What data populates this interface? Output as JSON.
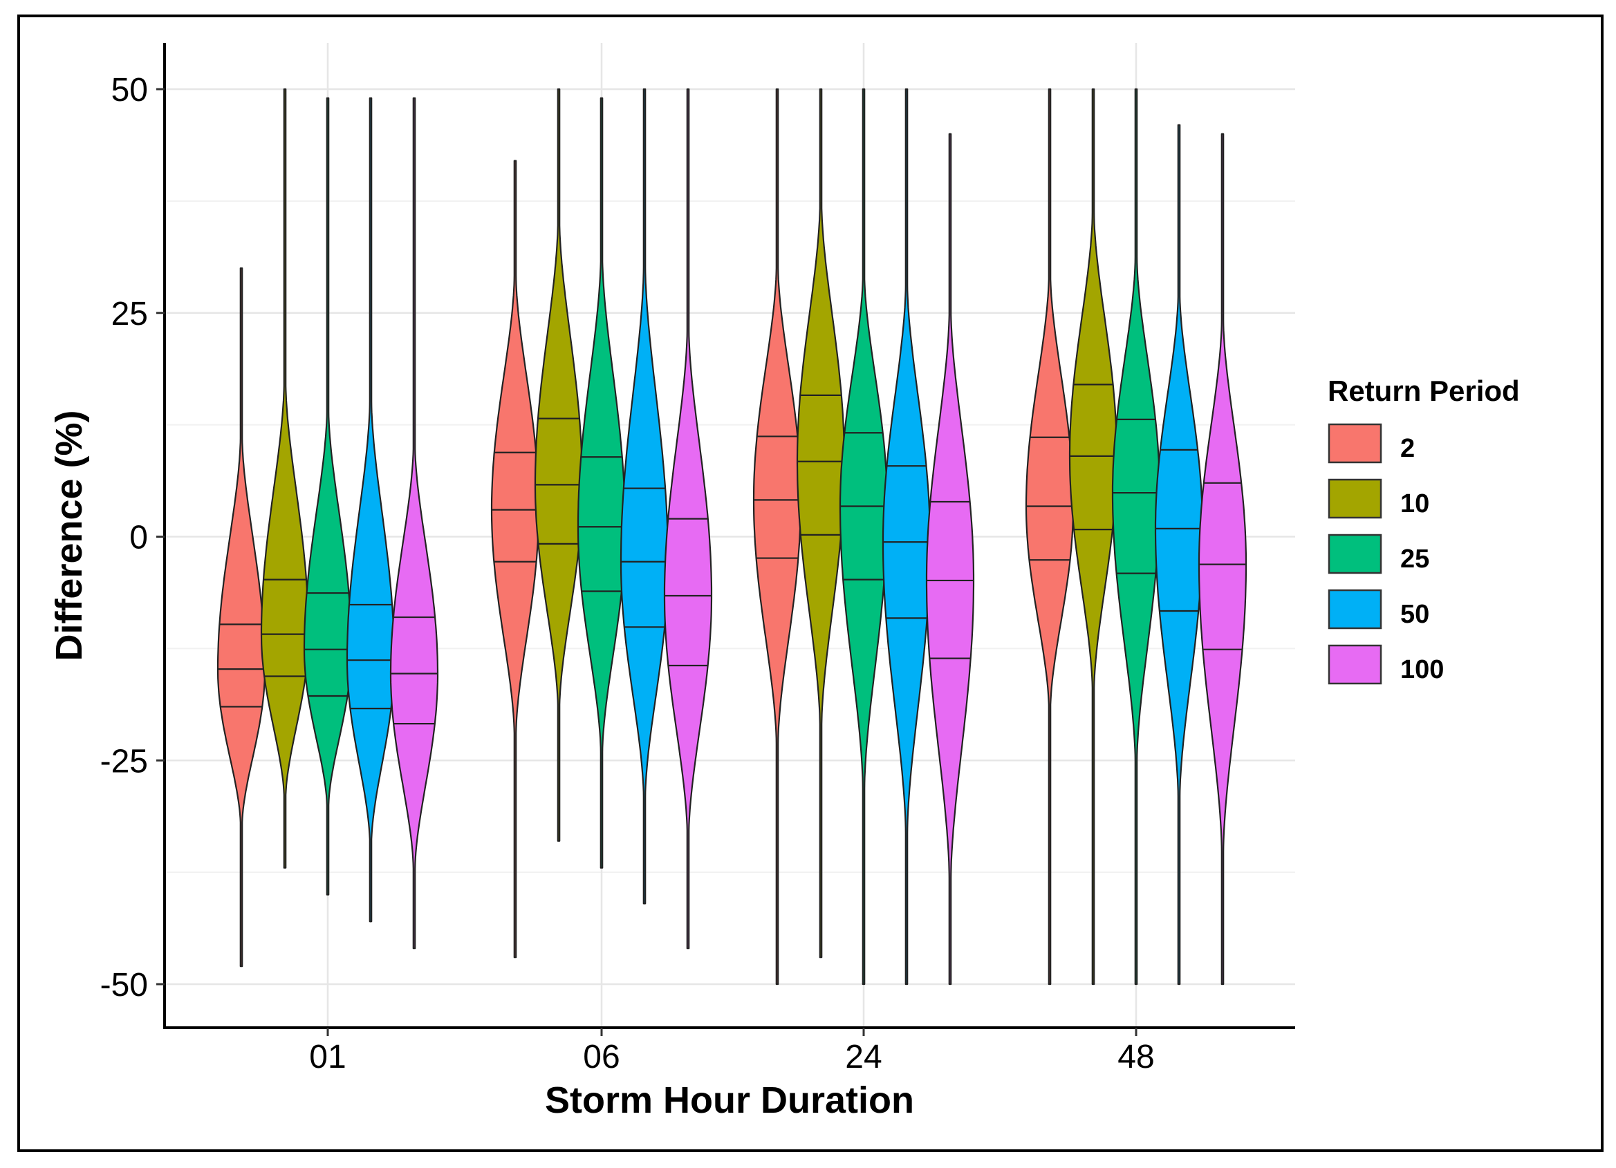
{
  "chart_data": {
    "type": "violin",
    "xlabel": "Storm Hour Duration",
    "ylabel": "Difference (%)",
    "categories": [
      "01",
      "06",
      "24",
      "48"
    ],
    "ylim": [
      -55,
      55
    ],
    "y_ticks": [
      -50,
      -25,
      0,
      25,
      50
    ],
    "y_tick_labels": [
      "-50",
      "-25",
      "0",
      "25",
      "50"
    ],
    "grid": true,
    "legend": {
      "title": "Return Period",
      "position": "right",
      "entries": [
        {
          "label": "2",
          "color": "#F8766D"
        },
        {
          "label": "10",
          "color": "#A3A500"
        },
        {
          "label": "25",
          "color": "#00BF7D"
        },
        {
          "label": "50",
          "color": "#00B0F6"
        },
        {
          "label": "100",
          "color": "#E76BF3"
        }
      ]
    },
    "series": [
      {
        "name": "2",
        "color": "#F8766D",
        "violins": [
          {
            "category": "01",
            "min": -48,
            "max": 30,
            "q1": -19,
            "median": -14.8,
            "q3": -9.8,
            "body_low": -32,
            "body_high": 11
          },
          {
            "category": "06",
            "min": -47,
            "max": 42,
            "q1": -2.8,
            "median": 3,
            "q3": 9.4,
            "body_low": -22,
            "body_high": 29
          },
          {
            "category": "24",
            "min": -50,
            "max": 50,
            "q1": -2.4,
            "median": 4.1,
            "q3": 11.2,
            "body_low": -23,
            "body_high": 30
          },
          {
            "category": "48",
            "min": -50,
            "max": 50,
            "q1": -2.6,
            "median": 3.4,
            "q3": 11.1,
            "body_low": -19,
            "body_high": 29
          }
        ]
      },
      {
        "name": "10",
        "color": "#A3A500",
        "violins": [
          {
            "category": "01",
            "min": -37,
            "max": 50,
            "q1": -15.6,
            "median": -10.9,
            "q3": -4.8,
            "body_low": -29,
            "body_high": 17
          },
          {
            "category": "06",
            "min": -34,
            "max": 50,
            "q1": -0.8,
            "median": 5.8,
            "q3": 13.2,
            "body_low": -19,
            "body_high": 35
          },
          {
            "category": "24",
            "min": -47,
            "max": 50,
            "q1": 0.2,
            "median": 8.4,
            "q3": 15.8,
            "body_low": -21,
            "body_high": 37
          },
          {
            "category": "48",
            "min": -50,
            "max": 50,
            "q1": 0.8,
            "median": 9,
            "q3": 17,
            "body_low": -17,
            "body_high": 36
          }
        ]
      },
      {
        "name": "25",
        "color": "#00BF7D",
        "violins": [
          {
            "category": "01",
            "min": -40,
            "max": 49,
            "q1": -17.8,
            "median": -12.6,
            "q3": -6.3,
            "body_low": -30,
            "body_high": 14
          },
          {
            "category": "06",
            "min": -37,
            "max": 49,
            "q1": -6.1,
            "median": 1.1,
            "q3": 8.9,
            "body_low": -24,
            "body_high": 31
          },
          {
            "category": "24",
            "min": -50,
            "max": 50,
            "q1": -4.8,
            "median": 3.4,
            "q3": 11.6,
            "body_low": -28,
            "body_high": 29
          },
          {
            "category": "48",
            "min": -50,
            "max": 50,
            "q1": -4.1,
            "median": 4.9,
            "q3": 13.1,
            "body_low": -25,
            "body_high": 31
          }
        ]
      },
      {
        "name": "50",
        "color": "#00B0F6",
        "violins": [
          {
            "category": "01",
            "min": -43,
            "max": 49,
            "q1": -19.2,
            "median": -13.8,
            "q3": -7.6,
            "body_low": -34,
            "body_high": 15
          },
          {
            "category": "06",
            "min": -41,
            "max": 50,
            "q1": -10.1,
            "median": -2.8,
            "q3": 5.4,
            "body_low": -29,
            "body_high": 30
          },
          {
            "category": "24",
            "min": -50,
            "max": 50,
            "q1": -9.1,
            "median": -0.6,
            "q3": 7.9,
            "body_low": -33,
            "body_high": 28
          },
          {
            "category": "48",
            "min": -50,
            "max": 46,
            "q1": -8.3,
            "median": 0.9,
            "q3": 9.7,
            "body_low": -29,
            "body_high": 27
          }
        ]
      },
      {
        "name": "100",
        "color": "#E76BF3",
        "violins": [
          {
            "category": "01",
            "min": -46,
            "max": 49,
            "q1": -20.9,
            "median": -15.3,
            "q3": -9,
            "body_low": -37,
            "body_high": 10
          },
          {
            "category": "06",
            "min": -46,
            "max": 50,
            "q1": -14.4,
            "median": -6.6,
            "q3": 2,
            "body_low": -33,
            "body_high": 23
          },
          {
            "category": "24",
            "min": -50,
            "max": 45,
            "q1": -13.6,
            "median": -4.9,
            "q3": 3.9,
            "body_low": -38,
            "body_high": 25
          },
          {
            "category": "48",
            "min": -50,
            "max": 45,
            "q1": -12.6,
            "median": -3.1,
            "q3": 6,
            "body_low": -35,
            "body_high": 24
          }
        ]
      }
    ]
  }
}
